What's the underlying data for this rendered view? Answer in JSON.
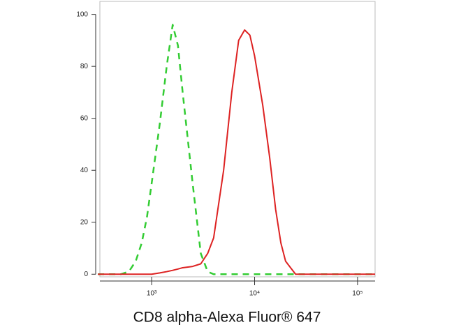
{
  "chart_data": {
    "type": "line",
    "x_label": "CD8 alpha-Alexa Fluor® 647",
    "x_scale": "log",
    "x": [
      300,
      500,
      600,
      700,
      800,
      900,
      1000,
      1200,
      1400,
      1600,
      1800,
      2000,
      2500,
      3000,
      3500,
      4000,
      5000,
      6000,
      7000,
      8000,
      9000,
      10000,
      12000,
      14000,
      16000,
      18000,
      20000,
      25000,
      50000,
      148000
    ],
    "series": [
      {
        "color": "#33cc33",
        "style": "dashed",
        "values": [
          0,
          0,
          1,
          5,
          12,
          22,
          35,
          58,
          80,
          96,
          88,
          70,
          35,
          8,
          1,
          0,
          0,
          0,
          0,
          0,
          0,
          0,
          0,
          0,
          0,
          0,
          0,
          0,
          0,
          0
        ]
      },
      {
        "color": "#dd2222",
        "style": "solid",
        "values": [
          0,
          0,
          0,
          0,
          0,
          0,
          0,
          0.5,
          1,
          1.5,
          2,
          2.5,
          3,
          4,
          8,
          14,
          40,
          70,
          90,
          94,
          92,
          84,
          65,
          45,
          25,
          12,
          5,
          0,
          0,
          0
        ]
      }
    ],
    "xlim": [
      314,
      148000
    ],
    "xticks": [
      {
        "value": 1000,
        "label": "10³"
      },
      {
        "value": 10000,
        "label": "10⁴"
      },
      {
        "value": 100000,
        "label": "10⁵"
      }
    ],
    "ylim": [
      -1,
      105
    ],
    "yticks": [
      0,
      20,
      40,
      60,
      80,
      100
    ],
    "grid": false
  }
}
